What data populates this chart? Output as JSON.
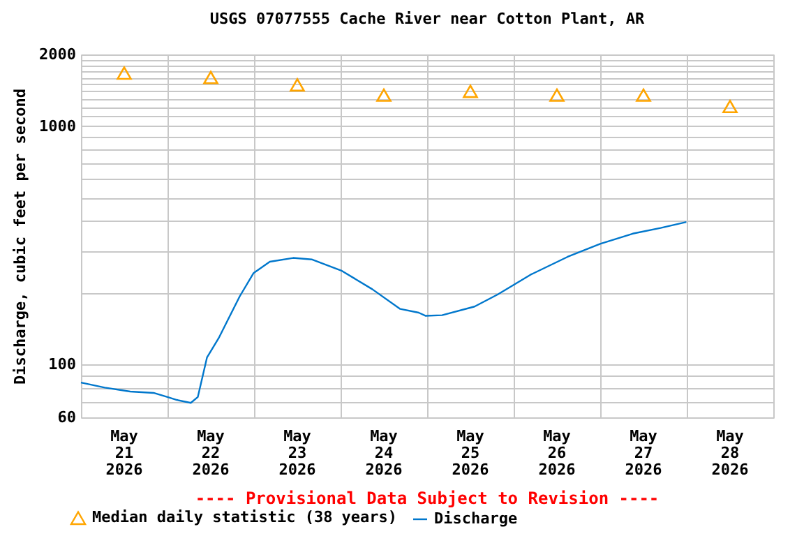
{
  "chart_data": {
    "type": "line",
    "title": "USGS 07077555 Cache River near Cotton Plant, AR",
    "ylabel": "Discharge, cubic feet per second",
    "annotations": [
      "---- Provisional Data Subject to Revision ----"
    ],
    "log": "y",
    "grid": true,
    "legend": "bottom",
    "xlim": [
      "2026-05-21T00:00",
      "2026-05-29T00:00"
    ],
    "xticks": [
      {
        "value": "2026-05-21T00:00",
        "label": null
      },
      {
        "value": "2026-05-21T12:00",
        "label": "May 21 2026"
      },
      {
        "value": "2026-05-22T00:00",
        "label": null
      },
      {
        "value": "2026-05-22T12:00",
        "label": "May 22 2026"
      },
      {
        "value": "2026-05-23T00:00",
        "label": null
      },
      {
        "value": "2026-05-23T12:00",
        "label": "May 23 2026"
      },
      {
        "value": "2026-05-24T00:00",
        "label": null
      },
      {
        "value": "2026-05-24T12:00",
        "label": "May 24 2026"
      },
      {
        "value": "2026-05-25T00:00",
        "label": null
      },
      {
        "value": "2026-05-25T12:00",
        "label": "May 25 2026"
      },
      {
        "value": "2026-05-26T00:00",
        "label": null
      },
      {
        "value": "2026-05-26T12:00",
        "label": "May 26 2026"
      },
      {
        "value": "2026-05-27T00:00",
        "label": null
      },
      {
        "value": "2026-05-27T12:00",
        "label": "May 27 2026"
      },
      {
        "value": "2026-05-28T00:00",
        "label": null
      },
      {
        "value": "2026-05-28T12:00",
        "label": "May 28 2026"
      },
      {
        "value": "2026-05-29T00:00",
        "label": null
      }
    ],
    "ylim": [
      60,
      2000
    ],
    "yticks": [
      60,
      {
        "value": 70,
        "label": null
      },
      {
        "value": 80,
        "label": null
      },
      {
        "value": 90,
        "label": null
      },
      100,
      {
        "value": 200,
        "label": null
      },
      {
        "value": 300,
        "label": null
      },
      {
        "value": 400,
        "label": null
      },
      {
        "value": 500,
        "label": null
      },
      {
        "value": 600,
        "label": null
      },
      {
        "value": 700,
        "label": null
      },
      {
        "value": 800,
        "label": null
      },
      {
        "value": 900,
        "label": null
      },
      1000,
      {
        "value": 1100,
        "label": null
      },
      {
        "value": 1200,
        "label": null
      },
      {
        "value": 1300,
        "label": null
      },
      {
        "value": 1400,
        "label": null
      },
      {
        "value": 1500,
        "label": null
      },
      {
        "value": 1600,
        "label": null
      },
      {
        "value": 1700,
        "label": null
      },
      {
        "value": 1800,
        "label": null
      },
      {
        "value": 1900,
        "label": null
      },
      2000
    ],
    "series": [
      {
        "name": "Median daily statistic (38 years)",
        "type": "scatter",
        "marker": "triangle",
        "color": "#ffa500",
        "x": [
          "2026-05-21T12:00",
          "2026-05-22T12:00",
          "2026-05-23T12:00",
          "2026-05-24T12:00",
          "2026-05-25T12:00",
          "2026-05-26T12:00",
          "2026-05-27T12:00",
          "2026-05-28T12:00"
        ],
        "values": [
          1670,
          1600,
          1490,
          1350,
          1400,
          1350,
          1350,
          1210
        ]
      },
      {
        "name": "Discharge",
        "type": "line",
        "marker": "none",
        "color": "#0077cc",
        "x": [
          "2026-05-21T00:00",
          "2026-05-21T06:35",
          "2026-05-21T13:40",
          "2026-05-21T20:08",
          "2026-05-22T00:00",
          "2026-05-22T02:36",
          "2026-05-22T06:28",
          "2026-05-22T08:24",
          "2026-05-22T10:57",
          "2026-05-22T14:12",
          "2026-05-22T16:45",
          "2026-05-22T20:01",
          "2026-05-22T23:53",
          "2026-05-23T04:22",
          "2026-05-23T10:51",
          "2026-05-23T15:59",
          "2026-05-24T00:23",
          "2026-05-24T08:47",
          "2026-05-24T16:32",
          "2026-05-24T21:40",
          "2026-05-24T23:37",
          "2026-05-25T04:09",
          "2026-05-25T13:09",
          "2026-05-25T19:38",
          "2026-05-26T04:39",
          "2026-05-26T14:58",
          "2026-05-27T00:00",
          "2026-05-27T09:01",
          "2026-05-27T16:45",
          "2026-05-27T23:53"
        ],
        "values": [
          84,
          80,
          77,
          76,
          73,
          71,
          69,
          73,
          107,
          129,
          154,
          193,
          242,
          270,
          280,
          276,
          247,
          207,
          171,
          165,
          160,
          161,
          175,
          197,
          238,
          283,
          321,
          354,
          374,
          396
        ]
      }
    ]
  }
}
